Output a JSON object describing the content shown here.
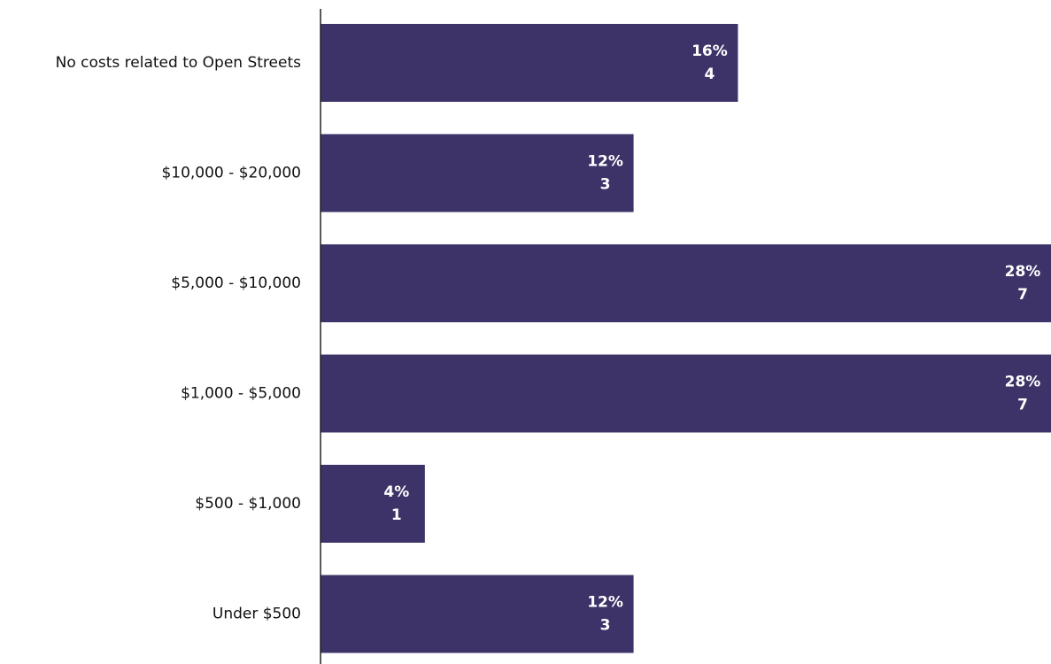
{
  "chart_data": {
    "type": "hbar",
    "categories": [
      "No costs related to Open Streets",
      "$10,000 - $20,000",
      "$5,000 - $10,000",
      "$1,000 - $5,000",
      "$500 - $1,000",
      "Under $500"
    ],
    "values": [
      16,
      12,
      28,
      28,
      4,
      12
    ],
    "value_labels": [
      "16%",
      "12%",
      "28%",
      "28%",
      "4%",
      "12%"
    ],
    "counts": [
      4,
      3,
      7,
      7,
      1,
      3
    ],
    "color": "#3d3368",
    "xlim": [
      0,
      28
    ]
  }
}
